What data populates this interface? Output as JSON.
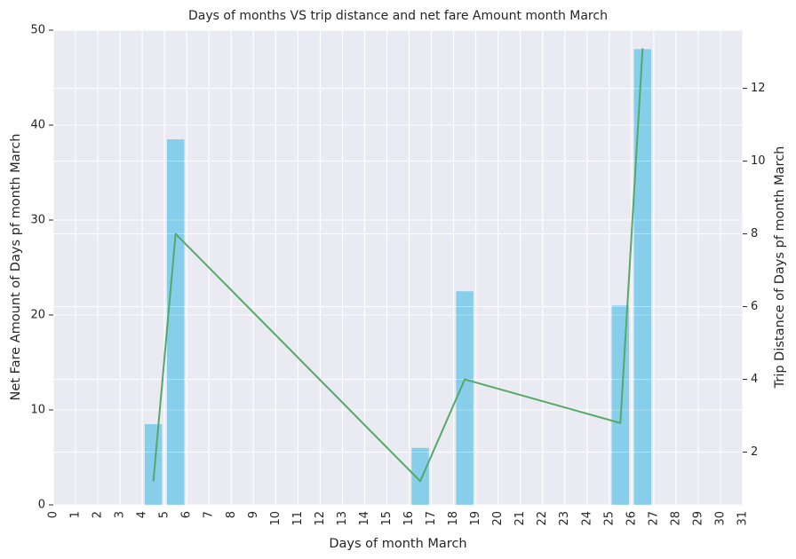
{
  "chart_data": {
    "type": "bar",
    "title": "Days of months VS trip distance and net fare Amount month March",
    "xlabel": "Days of month March",
    "ylabel_left": "Net Fare Amount of Days pf month March",
    "ylabel_right": "Trip Distance of Days pf month March",
    "x_ticks": [
      "0",
      "1",
      "2",
      "3",
      "4",
      "5",
      "6",
      "7",
      "8",
      "9",
      "10",
      "11",
      "12",
      "13",
      "14",
      "15",
      "16",
      "17",
      "18",
      "19",
      "20",
      "21",
      "22",
      "23",
      "24",
      "25",
      "26",
      "27",
      "28",
      "29",
      "30",
      "31"
    ],
    "xlim": [
      0,
      31
    ],
    "y_left_ticks": [
      "0",
      "10",
      "20",
      "30",
      "40",
      "50"
    ],
    "ylim_left": [
      0,
      50
    ],
    "y_right_ticks": [
      "2",
      "4",
      "6",
      "8",
      "10",
      "12"
    ],
    "ylim_right": [
      0.55,
      13.6
    ],
    "grid": true,
    "series": [
      {
        "type": "bar",
        "axis": "left",
        "color": "#87ceeb",
        "points": [
          {
            "x": 4,
            "y": 8.5
          },
          {
            "x": 5,
            "y": 38.5
          },
          {
            "x": 16,
            "y": 6.0
          },
          {
            "x": 18,
            "y": 22.5
          },
          {
            "x": 25,
            "y": 21.0
          },
          {
            "x": 26,
            "y": 48.0
          }
        ]
      },
      {
        "type": "line",
        "axis": "right",
        "color": "#55a868",
        "points": [
          {
            "x": 4,
            "y": 1.2
          },
          {
            "x": 5,
            "y": 8.0
          },
          {
            "x": 16,
            "y": 1.2
          },
          {
            "x": 18,
            "y": 4.0
          },
          {
            "x": 25,
            "y": 2.8
          },
          {
            "x": 26,
            "y": 13.1
          }
        ]
      }
    ]
  }
}
